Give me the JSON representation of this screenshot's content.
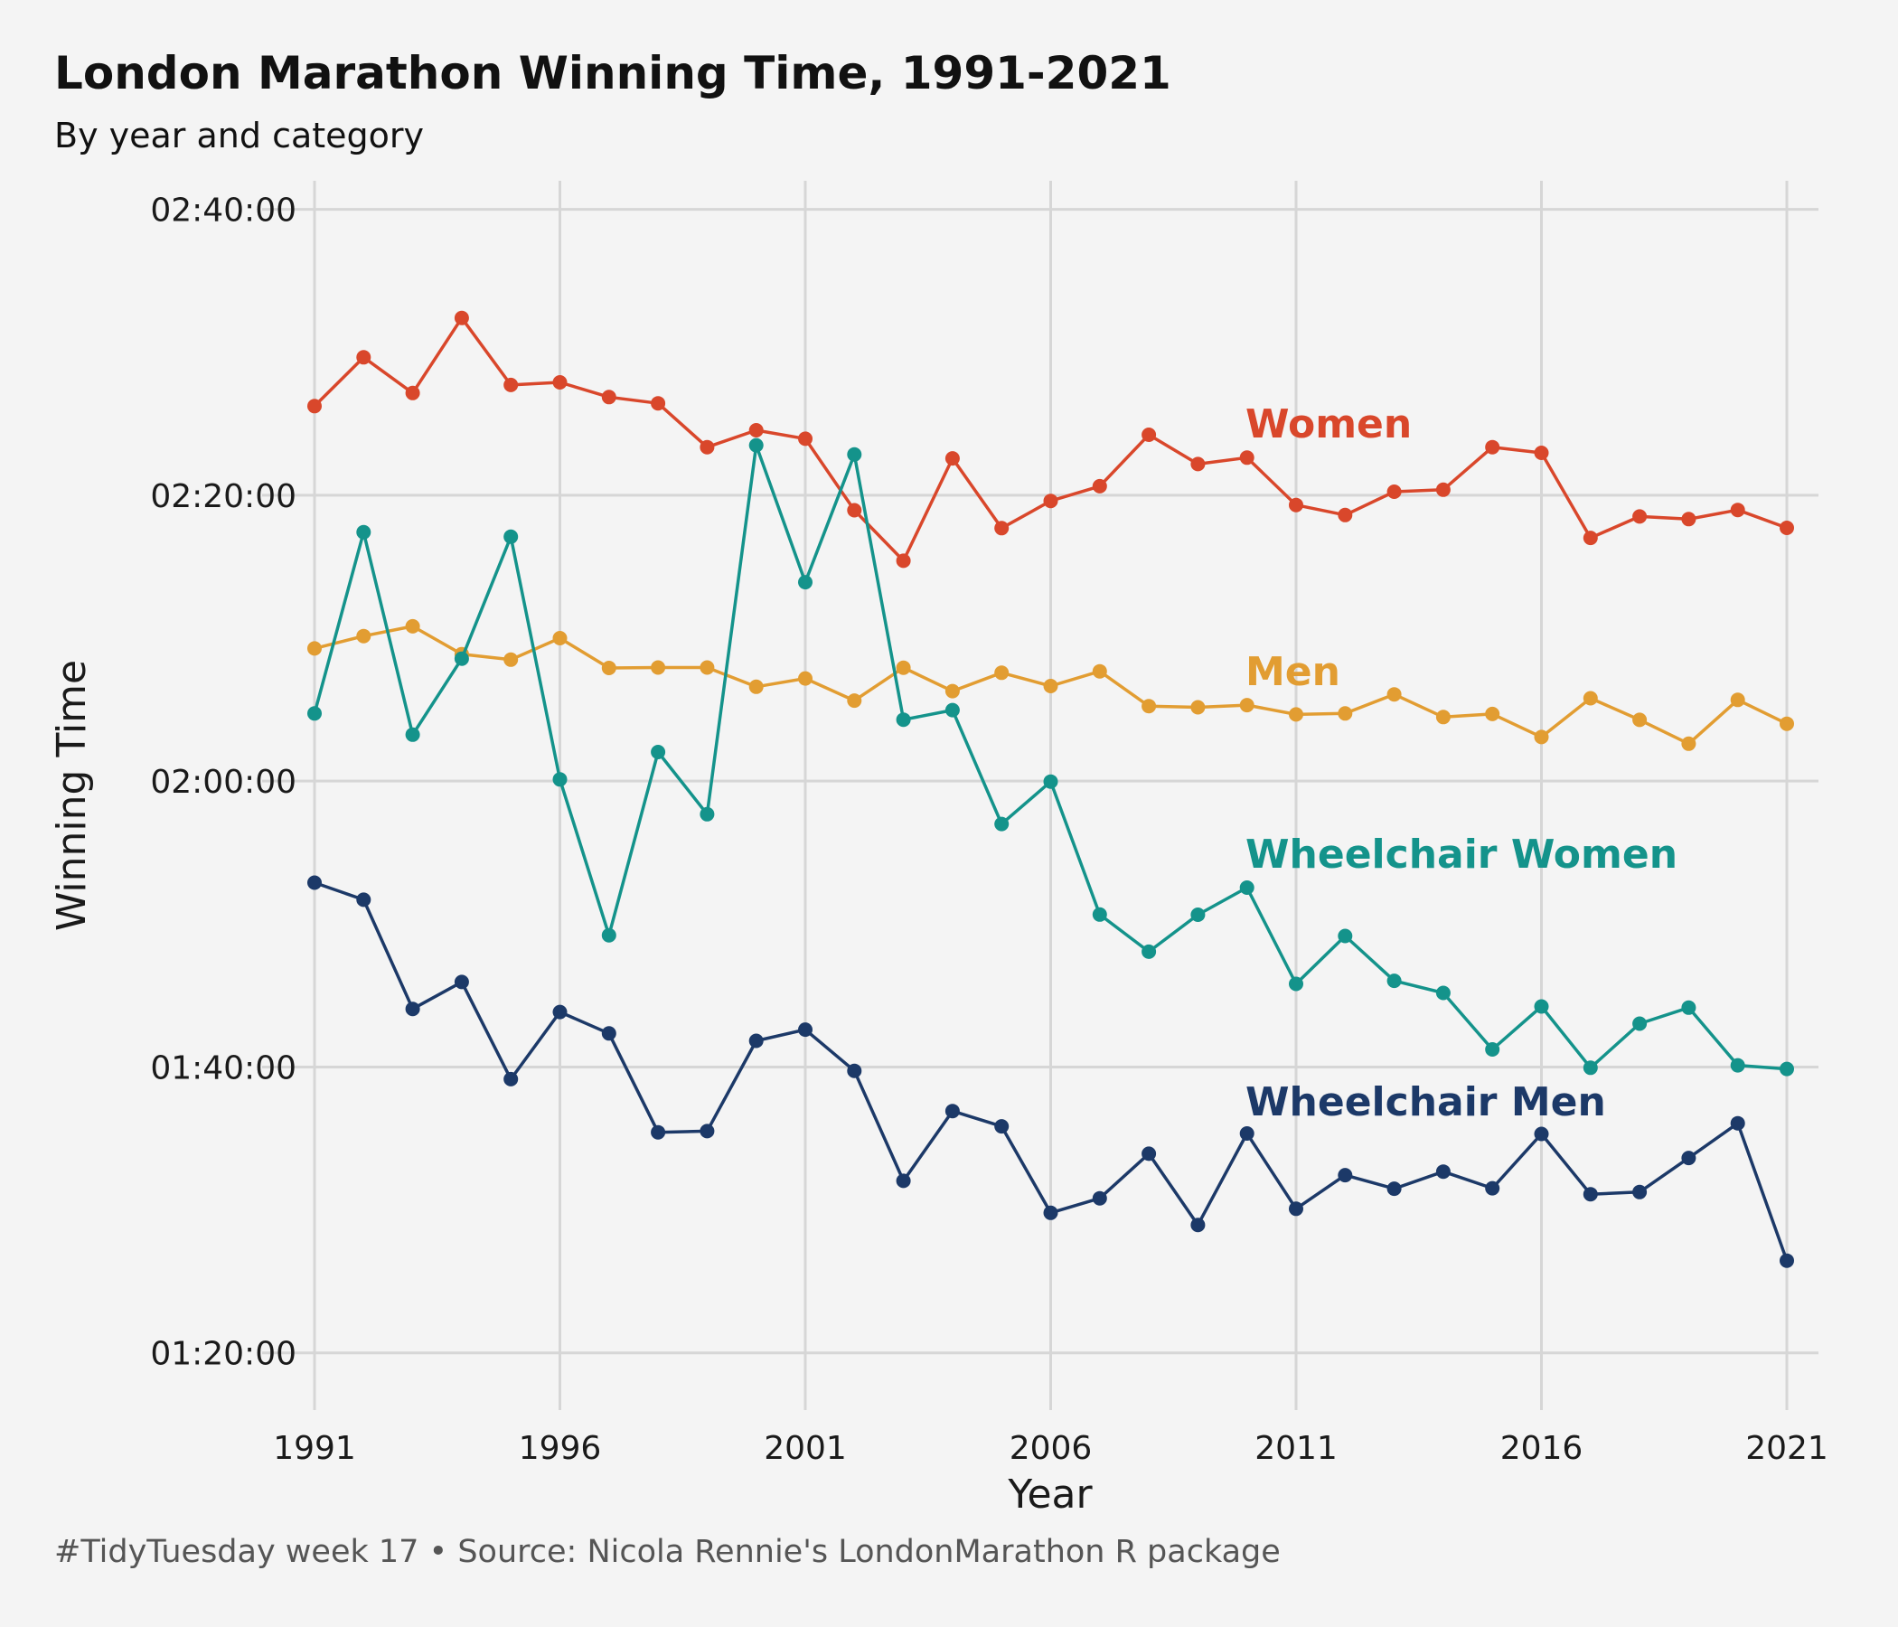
{
  "title": "London Marathon Winning Time, 1991-2021",
  "subtitle": "By year and category",
  "caption": "#TidyTuesday week 17  •  Source: Nicola Rennie's LondonMarathon R package",
  "chart_data": {
    "type": "line",
    "title": "London Marathon Winning Time, 1991-2021",
    "subtitle": "By year and category",
    "xlabel": "Year",
    "ylabel": "Winning Time",
    "xlim": [
      1991,
      2021
    ],
    "ylim_seconds": [
      4560,
      9720
    ],
    "x_ticks": [
      "1991",
      "1996",
      "2001",
      "2006",
      "2011",
      "2016",
      "2021"
    ],
    "y_ticks": [
      "01:20:00",
      "01:40:00",
      "02:00:00",
      "02:20:00",
      "02:40:00"
    ],
    "grid": true,
    "legend": "direct labels",
    "x": [
      1991,
      1992,
      1993,
      1994,
      1995,
      1996,
      1997,
      1998,
      1999,
      2000,
      2001,
      2002,
      2003,
      2004,
      2005,
      2006,
      2007,
      2008,
      2009,
      2010,
      2011,
      2012,
      2013,
      2014,
      2015,
      2016,
      2017,
      2018,
      2019,
      2020,
      2021
    ],
    "series": [
      {
        "name": "Women",
        "color": "#d9472b",
        "values": [
          "02:26:14",
          "02:29:39",
          "02:27:09",
          "02:32:24",
          "02:27:43",
          "02:27:54",
          "02:26:52",
          "02:26:26",
          "02:23:22",
          "02:24:33",
          "02:23:57",
          "02:18:57",
          "02:15:25",
          "02:22:35",
          "02:17:42",
          "02:19:36",
          "02:20:38",
          "02:24:14",
          "02:22:11",
          "02:22:38",
          "02:19:19",
          "02:18:37",
          "02:20:15",
          "02:20:23",
          "02:23:22",
          "02:22:58",
          "02:17:01",
          "02:18:31",
          "02:18:20",
          "02:18:58",
          "02:17:43"
        ]
      },
      {
        "name": "Men",
        "color": "#e29d32",
        "values": [
          "02:09:17",
          "02:10:09",
          "02:10:50",
          "02:08:53",
          "02:08:30",
          "02:10:00",
          "02:07:55",
          "02:07:57",
          "02:07:57",
          "02:06:36",
          "02:07:11",
          "02:05:38",
          "02:07:56",
          "02:06:18",
          "02:07:35",
          "02:06:39",
          "02:07:41",
          "02:05:15",
          "02:05:10",
          "02:05:19",
          "02:04:40",
          "02:04:44",
          "02:06:04",
          "02:04:29",
          "02:04:42",
          "02:03:05",
          "02:05:48",
          "02:04:17",
          "02:02:37",
          "02:05:41",
          "02:04:01"
        ]
      },
      {
        "name": "Wheelchair Women",
        "color": "#14938b",
        "values": [
          "02:04:44",
          "02:17:25",
          "02:03:15",
          "02:08:34",
          "02:17:06",
          "02:00:07",
          "01:49:13",
          "02:02:02",
          "01:57:41",
          "02:23:30",
          "02:13:55",
          "02:22:51",
          "02:04:18",
          "02:04:58",
          "01:57:00",
          "01:59:58",
          "01:50:40",
          "01:48:04",
          "01:50:39",
          "01:52:33",
          "01:45:49",
          "01:49:10",
          "01:46:02",
          "01:45:11",
          "01:41:14",
          "01:44:14",
          "01:39:57",
          "01:43:02",
          "01:44:09",
          "01:40:07",
          "01:39:52"
        ]
      },
      {
        "name": "Wheelchair Men",
        "color": "#1c3968",
        "values": [
          "01:52:54",
          "01:51:42",
          "01:44:04",
          "01:45:57",
          "01:39:09",
          "01:43:51",
          "01:42:21",
          "01:35:26",
          "01:35:31",
          "01:41:50",
          "01:42:37",
          "01:39:44",
          "01:32:02",
          "01:36:55",
          "01:35:51",
          "01:29:48",
          "01:30:49",
          "01:33:56",
          "01:28:57",
          "01:35:21",
          "01:30:05",
          "01:32:26",
          "01:31:29",
          "01:32:41",
          "01:31:31",
          "01:35:19",
          "01:31:06",
          "01:31:15",
          "01:33:38",
          "01:36:04",
          "01:26:27"
        ]
      }
    ]
  }
}
